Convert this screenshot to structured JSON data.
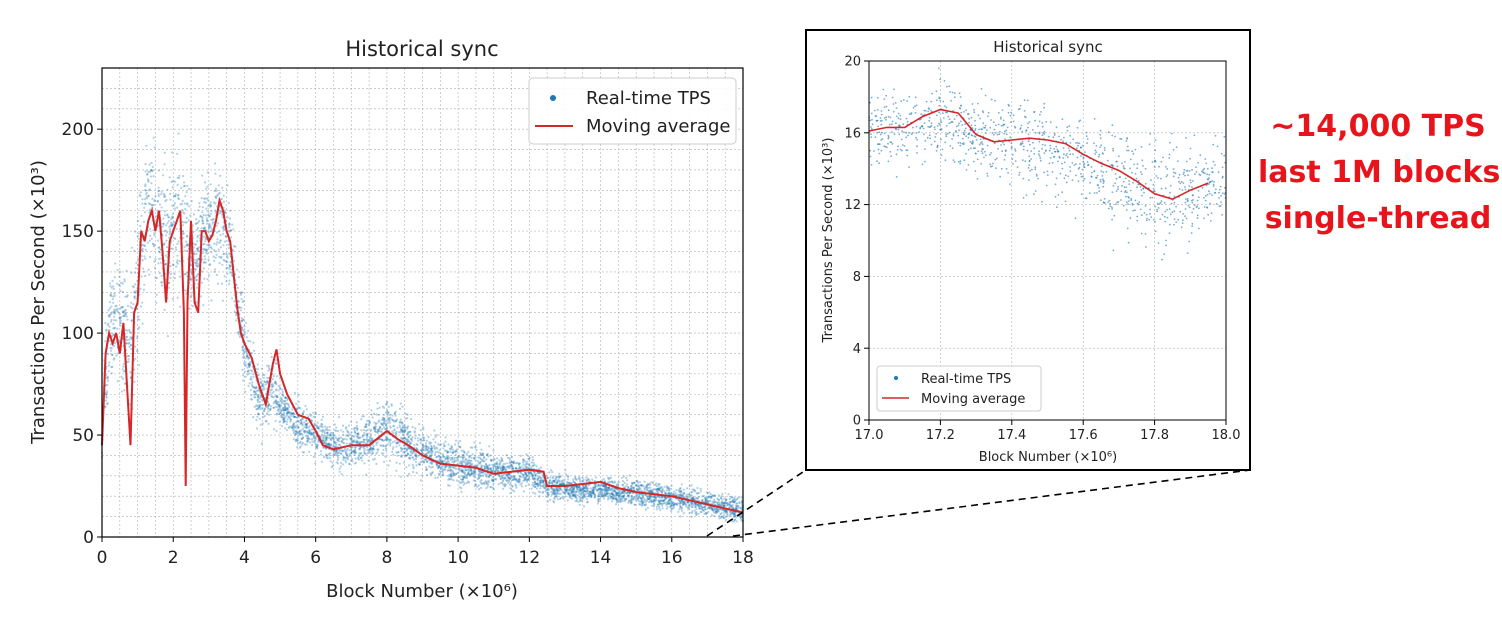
{
  "callout": {
    "lines": [
      "~14,000 TPS",
      "last 1M blocks",
      "single-thread"
    ],
    "color": "#e8141c"
  },
  "colors": {
    "scatter": "#1f77b4",
    "moving_average": "#d62728",
    "zoom_box_border": "#000000",
    "grid": "#b0b0b0"
  },
  "chart_data": [
    {
      "type": "scatter",
      "title": "Historical sync",
      "xlabel": "Block Number (×10⁶)",
      "ylabel": "Transactions Per Second (×10³)",
      "xlim": [
        0,
        18
      ],
      "ylim": [
        0,
        230
      ],
      "xticks": [
        0,
        2,
        4,
        6,
        8,
        10,
        12,
        14,
        16,
        18
      ],
      "yticks": [
        0,
        50,
        100,
        150,
        200
      ],
      "grid": true,
      "legend_position": "top-right",
      "series": [
        {
          "name": "Real-time TPS",
          "kind": "scatter",
          "band": {
            "x": [
              0,
              0.2,
              0.4,
              0.6,
              0.8,
              1.0,
              1.2,
              1.4,
              1.6,
              1.8,
              2.0,
              2.2,
              2.4,
              2.6,
              2.8,
              3.0,
              3.2,
              3.4,
              3.6,
              3.8,
              4.0,
              4.2,
              4.4,
              4.6,
              4.8,
              5.0,
              5.5,
              6.0,
              6.5,
              7.0,
              7.5,
              8.0,
              8.5,
              9.0,
              9.5,
              10.0,
              11.0,
              12.0,
              12.5,
              13.0,
              14.0,
              15.0,
              16.0,
              17.0,
              18.0
            ],
            "low": [
              20,
              60,
              70,
              60,
              30,
              60,
              100,
              110,
              100,
              95,
              100,
              100,
              100,
              100,
              105,
              110,
              115,
              115,
              110,
              95,
              70,
              55,
              45,
              45,
              50,
              50,
              40,
              35,
              30,
              30,
              30,
              32,
              28,
              25,
              22,
              20,
              20,
              20,
              16,
              15,
              14,
              13,
              10,
              8,
              4
            ],
            "high": [
              90,
              140,
              150,
              140,
              145,
              185,
              205,
              210,
              205,
              195,
              200,
              205,
              190,
              170,
              180,
              190,
              195,
              190,
              175,
              135,
              115,
              105,
              95,
              90,
              100,
              80,
              70,
              65,
              60,
              60,
              65,
              75,
              65,
              58,
              52,
              50,
              45,
              43,
              35,
              33,
              32,
              30,
              28,
              25,
              22
            ]
          }
        },
        {
          "name": "Moving average",
          "kind": "line",
          "x": [
            0,
            0.1,
            0.2,
            0.3,
            0.4,
            0.5,
            0.6,
            0.7,
            0.8,
            0.9,
            1.0,
            1.1,
            1.2,
            1.3,
            1.4,
            1.5,
            1.6,
            1.7,
            1.8,
            1.9,
            2.0,
            2.1,
            2.2,
            2.3,
            2.35,
            2.4,
            2.5,
            2.6,
            2.7,
            2.8,
            2.9,
            3.0,
            3.1,
            3.2,
            3.3,
            3.4,
            3.5,
            3.6,
            3.7,
            3.8,
            3.9,
            4.0,
            4.2,
            4.4,
            4.6,
            4.8,
            4.9,
            5.0,
            5.2,
            5.5,
            5.8,
            6.0,
            6.2,
            6.5,
            7.0,
            7.5,
            8.0,
            8.3,
            8.6,
            9.0,
            9.5,
            10.0,
            10.5,
            11.0,
            11.5,
            12.0,
            12.4,
            12.5,
            13.0,
            13.5,
            14.0,
            14.5,
            15.0,
            15.5,
            16.0,
            16.5,
            17.0,
            17.5,
            18.0
          ],
          "y": [
            45,
            90,
            100,
            95,
            100,
            90,
            105,
            75,
            45,
            110,
            115,
            150,
            145,
            155,
            160,
            150,
            160,
            140,
            115,
            145,
            150,
            155,
            160,
            110,
            25,
            115,
            155,
            115,
            110,
            150,
            150,
            145,
            148,
            155,
            165,
            160,
            150,
            145,
            128,
            112,
            100,
            95,
            88,
            75,
            65,
            85,
            92,
            80,
            70,
            60,
            58,
            52,
            45,
            43,
            45,
            45,
            52,
            48,
            45,
            40,
            36,
            35,
            34,
            31,
            32,
            33,
            32,
            25,
            25,
            26,
            27,
            24,
            22,
            21,
            20,
            18,
            16,
            14,
            12
          ]
        }
      ]
    },
    {
      "type": "scatter",
      "title": "Historical sync",
      "xlabel": "Block Number (×10⁶)",
      "ylabel": "Transactions Per Second (×10³)",
      "xlim": [
        17.0,
        18.0
      ],
      "ylim": [
        0,
        20
      ],
      "xticks": [
        17.0,
        17.2,
        17.4,
        17.6,
        17.8,
        18.0
      ],
      "yticks": [
        0,
        4,
        8,
        12,
        16,
        20
      ],
      "grid": true,
      "legend_position": "bottom-left",
      "series": [
        {
          "name": "Real-time TPS",
          "kind": "scatter",
          "band": {
            "x": [
              17.0,
              17.1,
              17.2,
              17.3,
              17.4,
              17.5,
              17.6,
              17.7,
              17.8,
              17.9,
              18.0
            ],
            "low": [
              13.0,
              13.0,
              13.5,
              12.5,
              12.0,
              11.5,
              11.0,
              9.5,
              7.5,
              9.0,
              10.0
            ],
            "high": [
              19.5,
              19.5,
              20.0,
              19.0,
              19.0,
              18.5,
              18.0,
              17.5,
              17.0,
              17.0,
              16.5
            ]
          }
        },
        {
          "name": "Moving average",
          "kind": "line",
          "x": [
            17.0,
            17.05,
            17.1,
            17.15,
            17.2,
            17.25,
            17.3,
            17.35,
            17.4,
            17.45,
            17.5,
            17.55,
            17.6,
            17.65,
            17.7,
            17.75,
            17.8,
            17.85,
            17.9,
            17.95
          ],
          "y": [
            16.1,
            16.3,
            16.3,
            16.9,
            17.3,
            17.1,
            15.9,
            15.5,
            15.6,
            15.7,
            15.6,
            15.4,
            14.8,
            14.3,
            13.9,
            13.3,
            12.6,
            12.3,
            12.8,
            13.2
          ]
        }
      ]
    }
  ]
}
